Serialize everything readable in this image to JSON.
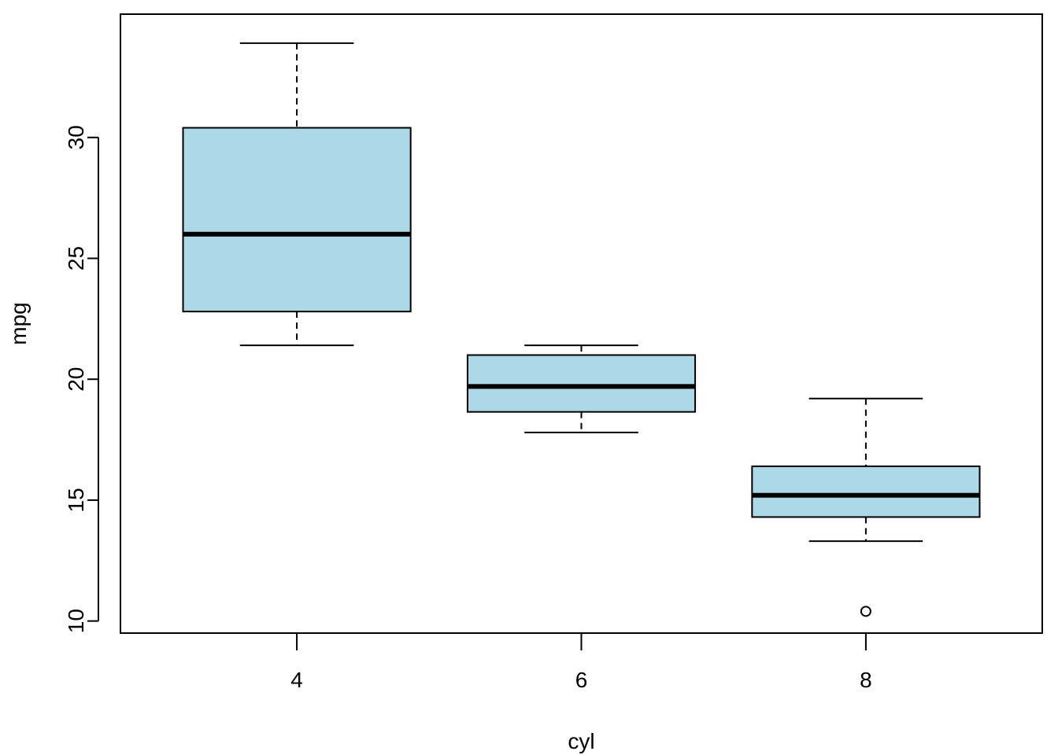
{
  "chart_data": {
    "type": "boxplot",
    "xlabel": "cyl",
    "ylabel": "mpg",
    "categories": [
      "4",
      "6",
      "8"
    ],
    "ylim": [
      9.5,
      35.1
    ],
    "yticks": [
      10,
      15,
      20,
      25,
      30
    ],
    "box_fill": "#ADD8E6",
    "boxes": [
      {
        "category": "4",
        "whisker_low": 21.4,
        "q1": 22.8,
        "median": 26.0,
        "q3": 30.4,
        "whisker_high": 33.9,
        "outliers": []
      },
      {
        "category": "6",
        "whisker_low": 17.8,
        "q1": 18.65,
        "median": 19.7,
        "q3": 21.0,
        "whisker_high": 21.4,
        "outliers": []
      },
      {
        "category": "8",
        "whisker_low": 13.3,
        "q1": 14.3,
        "median": 15.2,
        "q3": 16.4,
        "whisker_high": 19.2,
        "outliers": [
          10.4
        ]
      }
    ]
  }
}
